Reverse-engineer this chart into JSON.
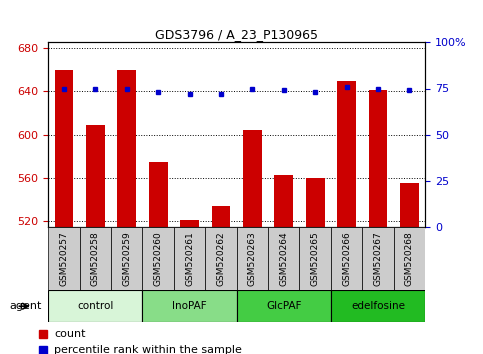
{
  "title": "GDS3796 / A_23_P130965",
  "samples": [
    "GSM520257",
    "GSM520258",
    "GSM520259",
    "GSM520260",
    "GSM520261",
    "GSM520262",
    "GSM520263",
    "GSM520264",
    "GSM520265",
    "GSM520266",
    "GSM520267",
    "GSM520268"
  ],
  "counts": [
    660,
    609,
    660,
    575,
    521,
    534,
    604,
    563,
    560,
    649,
    641,
    555
  ],
  "percentiles": [
    75,
    75,
    75,
    73,
    72,
    72,
    75,
    74,
    73,
    76,
    75,
    74
  ],
  "ylim_left": [
    515,
    685
  ],
  "ylim_right": [
    0,
    100
  ],
  "yticks_left": [
    520,
    560,
    600,
    640,
    680
  ],
  "yticks_right": [
    0,
    25,
    50,
    75,
    100
  ],
  "bar_color": "#cc0000",
  "dot_color": "#0000cc",
  "bar_width": 0.6,
  "groups": [
    {
      "label": "control",
      "start": 0,
      "end": 3,
      "color": "#d8f5d8"
    },
    {
      "label": "InoPAF",
      "start": 3,
      "end": 6,
      "color": "#88dd88"
    },
    {
      "label": "GlcPAF",
      "start": 6,
      "end": 9,
      "color": "#44cc44"
    },
    {
      "label": "edelfosine",
      "start": 9,
      "end": 12,
      "color": "#22bb22"
    }
  ],
  "xlabel_color": "#cc0000",
  "ylabel_right_color": "#0000cc",
  "tick_label_color": "#444444",
  "bg_color": "#ffffff",
  "grid_color": "#000000",
  "agent_label": "agent",
  "legend_count": "count",
  "legend_percentile": "percentile rank within the sample",
  "xticklabel_bg": "#cccccc",
  "xticklabel_fontsize": 6.5,
  "ytick_fontsize": 8
}
